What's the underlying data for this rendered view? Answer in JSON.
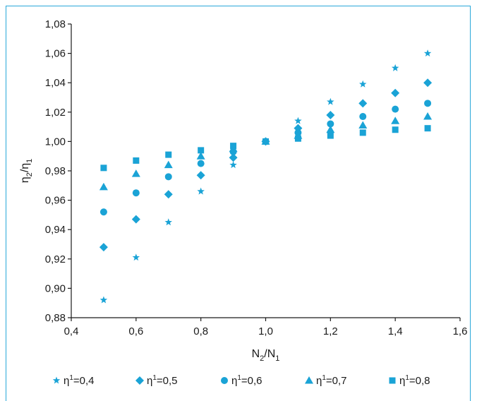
{
  "chart_data": {
    "type": "scatter",
    "xlabel": {
      "main": "N",
      "sub1": "2",
      "mid": "/N",
      "sub2": "1"
    },
    "ylabel": {
      "main": "η",
      "sub1": "2",
      "mid": "/η",
      "sub2": "1"
    },
    "xlim": [
      0.4,
      1.6
    ],
    "ylim": [
      0.88,
      1.08
    ],
    "x_ticks": [
      0.4,
      0.6,
      0.8,
      1.0,
      1.2,
      1.4,
      1.6
    ],
    "x_tick_labels": [
      "0,4",
      "0,6",
      "0,8",
      "1,0",
      "1,2",
      "1,4",
      "1,6"
    ],
    "y_ticks": [
      0.88,
      0.9,
      0.92,
      0.94,
      0.96,
      0.98,
      1.0,
      1.02,
      1.04,
      1.06,
      1.08
    ],
    "y_tick_labels": [
      "0,88",
      "0,90",
      "0,92",
      "0,94",
      "0,96",
      "0,98",
      "1,00",
      "1,02",
      "1,04",
      "1,06",
      "1,08"
    ],
    "grid": false,
    "legend_position": "bottom",
    "marker_color": "#1aa3d6",
    "x": [
      0.5,
      0.6,
      0.7,
      0.8,
      0.9,
      1.0,
      1.1,
      1.2,
      1.3,
      1.4,
      1.5
    ],
    "series": [
      {
        "legend_prefix": "η",
        "legend_sup": "1",
        "legend_suffix": "=0,4",
        "marker": "star",
        "values": [
          0.892,
          0.921,
          0.945,
          0.966,
          0.984,
          1.0,
          1.014,
          1.027,
          1.039,
          1.05,
          1.06
        ]
      },
      {
        "legend_prefix": "η",
        "legend_sup": "1",
        "legend_suffix": "=0,5",
        "marker": "diamond",
        "values": [
          0.928,
          0.947,
          0.964,
          0.977,
          0.989,
          1.0,
          1.009,
          1.018,
          1.026,
          1.033,
          1.04
        ]
      },
      {
        "legend_prefix": "η",
        "legend_sup": "1",
        "legend_suffix": "=0,6",
        "marker": "circle",
        "values": [
          0.952,
          0.965,
          0.976,
          0.985,
          0.993,
          1.0,
          1.006,
          1.012,
          1.017,
          1.022,
          1.026
        ]
      },
      {
        "legend_prefix": "η",
        "legend_sup": "1",
        "legend_suffix": "=0,7",
        "marker": "triangle",
        "values": [
          0.969,
          0.978,
          0.984,
          0.99,
          0.995,
          1.0,
          1.004,
          1.008,
          1.011,
          1.014,
          1.017
        ]
      },
      {
        "legend_prefix": "η",
        "legend_sup": "1",
        "legend_suffix": "=0,8",
        "marker": "square",
        "values": [
          0.982,
          0.987,
          0.991,
          0.994,
          0.997,
          1.0,
          1.002,
          1.004,
          1.006,
          1.008,
          1.009
        ]
      }
    ]
  }
}
